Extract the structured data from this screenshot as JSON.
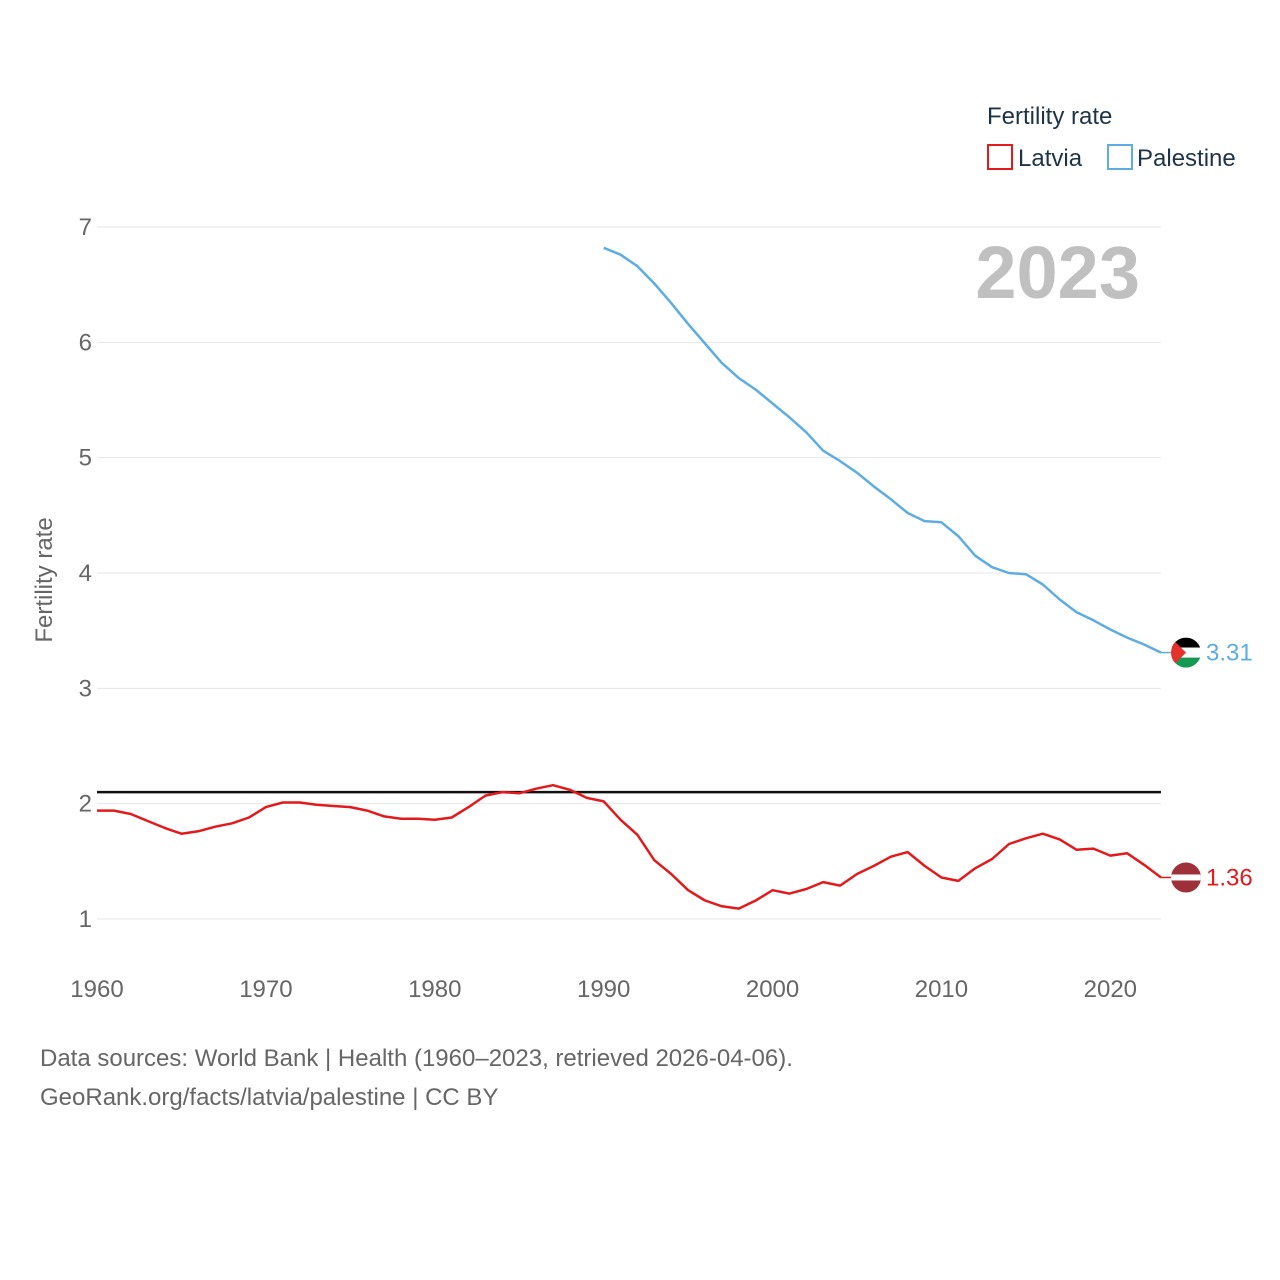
{
  "chart_data": {
    "type": "line",
    "legend_title": "Fertility rate",
    "ylabel": "Fertility rate",
    "year_label": "2023",
    "xlim": [
      1960,
      2023
    ],
    "ylim": [
      1,
      7
    ],
    "x_ticks": [
      1960,
      1970,
      1980,
      1990,
      2000,
      2010,
      2020
    ],
    "y_ticks": [
      1,
      2,
      3,
      4,
      5,
      6,
      7
    ],
    "reference_line": 2.1,
    "legend_position": "top-right",
    "series": [
      {
        "name": "Latvia",
        "color": "#e31a1c",
        "end_label": "1.36",
        "x": [
          1960,
          1961,
          1962,
          1963,
          1964,
          1965,
          1966,
          1967,
          1968,
          1969,
          1970,
          1971,
          1972,
          1973,
          1974,
          1975,
          1976,
          1977,
          1978,
          1979,
          1980,
          1981,
          1982,
          1983,
          1984,
          1985,
          1986,
          1987,
          1988,
          1989,
          1990,
          1991,
          1992,
          1993,
          1994,
          1995,
          1996,
          1997,
          1998,
          1999,
          2000,
          2001,
          2002,
          2003,
          2004,
          2005,
          2006,
          2007,
          2008,
          2009,
          2010,
          2011,
          2012,
          2013,
          2014,
          2015,
          2016,
          2017,
          2018,
          2019,
          2020,
          2021,
          2022,
          2023
        ],
        "values": [
          1.94,
          1.94,
          1.91,
          1.85,
          1.79,
          1.74,
          1.76,
          1.8,
          1.83,
          1.88,
          1.97,
          2.01,
          2.01,
          1.99,
          1.98,
          1.97,
          1.94,
          1.89,
          1.87,
          1.87,
          1.86,
          1.88,
          1.97,
          2.07,
          2.1,
          2.09,
          2.13,
          2.16,
          2.12,
          2.05,
          2.02,
          1.86,
          1.73,
          1.51,
          1.39,
          1.25,
          1.16,
          1.11,
          1.09,
          1.16,
          1.25,
          1.22,
          1.26,
          1.32,
          1.29,
          1.39,
          1.46,
          1.54,
          1.58,
          1.46,
          1.36,
          1.33,
          1.44,
          1.52,
          1.65,
          1.7,
          1.74,
          1.69,
          1.6,
          1.61,
          1.55,
          1.57,
          1.47,
          1.36
        ]
      },
      {
        "name": "Palestine",
        "color": "#5dade2",
        "end_label": "3.31",
        "x": [
          1990,
          1991,
          1992,
          1993,
          1994,
          1995,
          1996,
          1997,
          1998,
          1999,
          2000,
          2001,
          2002,
          2003,
          2004,
          2005,
          2006,
          2007,
          2008,
          2009,
          2010,
          2011,
          2012,
          2013,
          2014,
          2015,
          2016,
          2017,
          2018,
          2019,
          2020,
          2021,
          2022,
          2023
        ],
        "values": [
          6.82,
          6.76,
          6.66,
          6.51,
          6.34,
          6.16,
          5.99,
          5.82,
          5.69,
          5.59,
          5.47,
          5.35,
          5.22,
          5.06,
          4.97,
          4.87,
          4.75,
          4.64,
          4.52,
          4.45,
          4.44,
          4.32,
          4.15,
          4.05,
          4.0,
          3.99,
          3.9,
          3.77,
          3.66,
          3.59,
          3.51,
          3.44,
          3.38,
          3.31
        ]
      }
    ]
  },
  "footer": {
    "source_line": "Data sources: World Bank | Health (1960–2023, retrieved 2026-04-06).",
    "url_line": "GeoRank.org/facts/latvia/palestine | CC BY"
  }
}
